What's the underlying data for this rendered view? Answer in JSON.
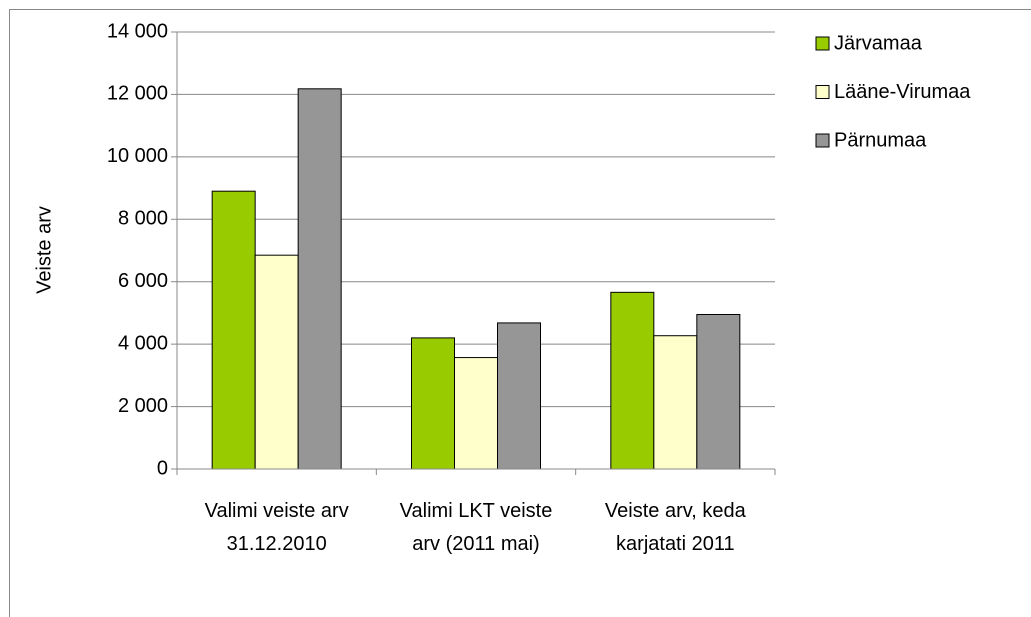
{
  "chart_data": {
    "type": "bar",
    "y_label": "Veiste arv",
    "categories": [
      "Valimi veiste arv 31.12.2010",
      "Valimi LKT veiste arv (2011 mai)",
      "Veiste arv, keda karjatati 2011"
    ],
    "series": [
      {
        "name": "Järvamaa",
        "color": "#99cc00",
        "values": [
          8900,
          4200,
          5660
        ]
      },
      {
        "name": "Lääne-Virumaa",
        "color": "#ffffcc",
        "values": [
          6850,
          3570,
          4270
        ]
      },
      {
        "name": "Pärnumaa",
        "color": "#969696",
        "values": [
          12180,
          4680,
          4950
        ]
      }
    ],
    "ylim": [
      0,
      14000
    ],
    "yticks": [
      0,
      {
        "value": 2000,
        "label": "2 000"
      },
      {
        "value": 4000,
        "label": "4 000"
      },
      {
        "value": 6000,
        "label": "6 000"
      },
      {
        "value": 8000,
        "label": "8 000"
      },
      {
        "value": 10000,
        "label": "10 000"
      },
      {
        "value": 12000,
        "label": "12 000"
      },
      {
        "value": 14000,
        "label": "14 000"
      }
    ],
    "grid": true,
    "legend": "right"
  }
}
